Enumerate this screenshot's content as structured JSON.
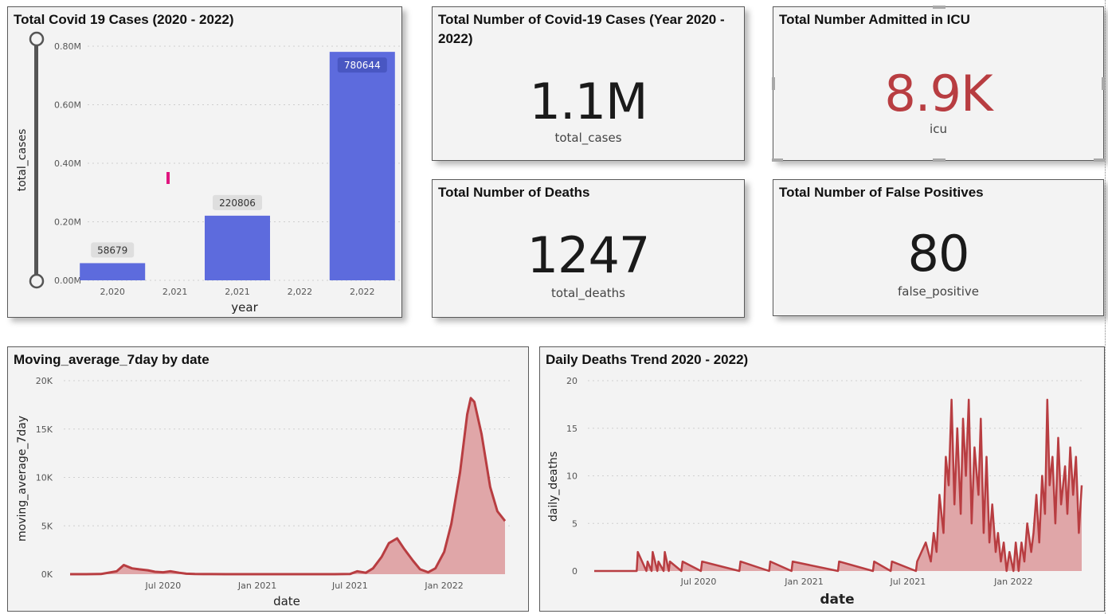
{
  "cards": {
    "bar_chart": {
      "title": "Total Covid 19 Cases (2020 - 2022)"
    },
    "total_cases": {
      "title": "Total Number of Covid-19 Cases (Year 2020 - 2022)",
      "value": "1.1M",
      "label": "total_cases"
    },
    "icu": {
      "title": "Total Number Admitted in ICU",
      "value": "8.9K",
      "label": "icu",
      "value_color": "#b83d41"
    },
    "deaths": {
      "title": "Total Number of Deaths",
      "value": "1247",
      "label": "total_deaths"
    },
    "false_positives": {
      "title": "Total Number of False Positives",
      "value": "80",
      "label": "false_positive"
    },
    "moving_avg": {
      "title": "Moving_average_7day by date"
    },
    "daily_deaths": {
      "title": "Daily Deaths Trend 2020 - 2022)"
    }
  },
  "colors": {
    "bar": "#5d6bdd",
    "line": "#b83d41",
    "area": "#e0a6a8",
    "slider": "#555555",
    "highlight": "#e0167f"
  },
  "chart_data": [
    {
      "type": "bar",
      "title": "Total Covid 19 Cases (2020 - 2022)",
      "xlabel": "year",
      "ylabel": "total_cases",
      "categories": [
        "2,020",
        "2,021",
        "2,021",
        "2,022",
        "2,022"
      ],
      "values": [
        58679,
        null,
        220806,
        null,
        780644
      ],
      "data_labels": [
        "58679",
        "",
        "220806",
        "",
        "780644"
      ],
      "yticks": [
        "0.00M",
        "0.20M",
        "0.40M",
        "0.60M",
        "0.80M"
      ],
      "ylim": [
        0,
        800000
      ],
      "grid": true
    },
    {
      "type": "area",
      "title": "Moving_average_7day by date",
      "xlabel": "date",
      "ylabel": "moving_average_7day",
      "xticks": [
        "Jul 2020",
        "Jan 2021",
        "Jul 2021",
        "Jan 2022"
      ],
      "yticks": [
        "0K",
        "5K",
        "10K",
        "15K",
        "20K"
      ],
      "ylim": [
        0,
        20000
      ],
      "x": [
        "2020-01-01",
        "2020-02-01",
        "2020-03-01",
        "2020-04-01",
        "2020-04-15",
        "2020-05-01",
        "2020-05-15",
        "2020-06-01",
        "2020-06-15",
        "2020-07-01",
        "2020-07-15",
        "2020-08-01",
        "2020-08-15",
        "2020-09-01",
        "2020-10-01",
        "2020-11-01",
        "2020-12-01",
        "2021-01-01",
        "2021-02-01",
        "2021-03-01",
        "2021-04-01",
        "2021-05-01",
        "2021-06-01",
        "2021-07-01",
        "2021-07-15",
        "2021-08-01",
        "2021-08-15",
        "2021-09-01",
        "2021-09-15",
        "2021-10-01",
        "2021-10-15",
        "2021-11-01",
        "2021-11-15",
        "2021-12-01",
        "2021-12-15",
        "2022-01-01",
        "2022-01-15",
        "2022-02-01",
        "2022-02-15",
        "2022-02-22",
        "2022-03-01",
        "2022-03-15",
        "2022-04-01",
        "2022-04-15",
        "2022-04-30"
      ],
      "y": [
        0,
        0,
        20,
        300,
        950,
        600,
        500,
        400,
        250,
        200,
        300,
        150,
        50,
        20,
        10,
        0,
        0,
        0,
        0,
        0,
        0,
        0,
        0,
        20,
        300,
        150,
        600,
        1800,
        3200,
        3700,
        2600,
        1400,
        500,
        200,
        600,
        2300,
        5200,
        10500,
        16500,
        18200,
        17800,
        14500,
        9000,
        6500,
        5500
      ],
      "grid": true
    },
    {
      "type": "area",
      "title": "Daily Deaths Trend 2020 - 2022)",
      "xlabel": "date",
      "ylabel": "daily_deaths",
      "xticks": [
        "Jul 2020",
        "Jan 2021",
        "Jul 2021",
        "Jan 2022"
      ],
      "yticks": [
        "0",
        "5",
        "10",
        "15",
        "20"
      ],
      "ylim": [
        0,
        20
      ],
      "x": [
        "2020-01-01",
        "2020-03-15",
        "2020-03-17",
        "2020-04-01",
        "2020-04-03",
        "2020-04-10",
        "2020-04-12",
        "2020-04-20",
        "2020-04-22",
        "2020-05-01",
        "2020-05-03",
        "2020-05-10",
        "2020-05-12",
        "2020-06-01",
        "2020-06-03",
        "2020-07-05",
        "2020-07-07",
        "2020-09-10",
        "2020-09-12",
        "2020-11-01",
        "2020-11-03",
        "2020-12-10",
        "2020-12-12",
        "2021-03-01",
        "2021-03-03",
        "2021-05-01",
        "2021-05-03",
        "2021-06-01",
        "2021-06-03",
        "2021-07-15",
        "2021-07-17",
        "2021-08-01",
        "2021-08-10",
        "2021-08-15",
        "2021-08-20",
        "2021-08-25",
        "2021-09-01",
        "2021-09-05",
        "2021-09-10",
        "2021-09-15",
        "2021-09-20",
        "2021-09-25",
        "2021-10-01",
        "2021-10-05",
        "2021-10-10",
        "2021-10-15",
        "2021-10-20",
        "2021-10-25",
        "2021-11-01",
        "2021-11-05",
        "2021-11-10",
        "2021-11-15",
        "2021-11-20",
        "2021-11-25",
        "2021-12-01",
        "2021-12-05",
        "2021-12-10",
        "2021-12-15",
        "2021-12-20",
        "2021-12-25",
        "2022-01-01",
        "2022-01-05",
        "2022-01-10",
        "2022-01-15",
        "2022-01-20",
        "2022-01-25",
        "2022-02-01",
        "2022-02-05",
        "2022-02-10",
        "2022-02-15",
        "2022-02-20",
        "2022-02-25",
        "2022-03-01",
        "2022-03-05",
        "2022-03-10",
        "2022-03-15",
        "2022-03-20",
        "2022-03-25",
        "2022-04-01",
        "2022-04-05",
        "2022-04-10",
        "2022-04-15",
        "2022-04-20",
        "2022-04-25",
        "2022-04-30"
      ],
      "y": [
        0,
        0,
        2,
        0,
        1,
        0,
        2,
        0,
        1,
        0,
        2,
        0,
        1,
        0,
        1,
        0,
        1,
        0,
        1,
        0,
        1,
        0,
        1,
        0,
        1,
        0,
        1,
        0,
        1,
        0,
        1,
        3,
        1,
        4,
        2,
        8,
        4,
        12,
        9,
        18,
        7,
        15,
        6,
        16,
        10,
        18,
        5,
        13,
        8,
        16,
        4,
        12,
        3,
        7,
        2,
        4,
        1,
        3,
        0,
        2,
        0,
        3,
        0,
        3,
        1,
        5,
        2,
        4,
        8,
        3,
        10,
        6,
        18,
        9,
        12,
        5,
        14,
        7,
        11,
        6,
        13,
        8,
        12,
        4,
        9
      ],
      "grid": true
    }
  ]
}
